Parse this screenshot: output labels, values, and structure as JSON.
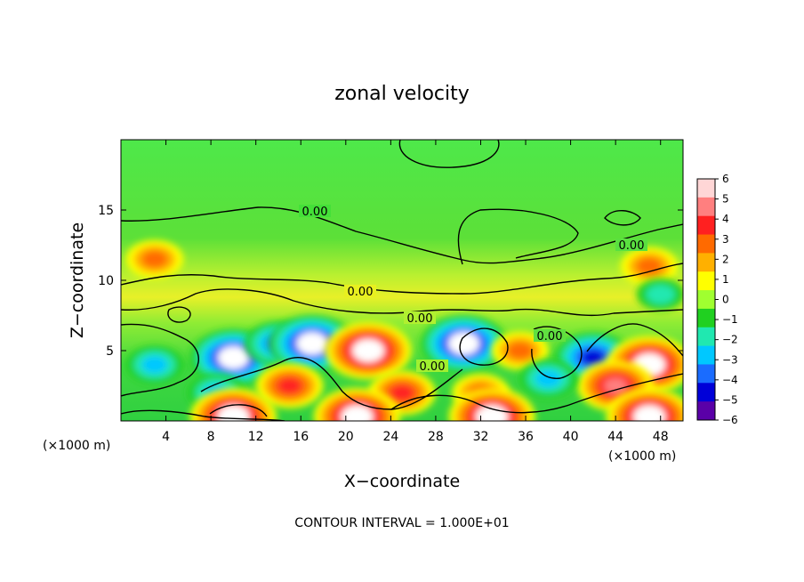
{
  "chart_data": {
    "type": "heatmap",
    "title": "zonal velocity",
    "xlabel": "X−coordinate",
    "ylabel": "Z−coordinate",
    "x_unit": "(×1000 m)",
    "xlim": [
      0,
      50
    ],
    "ylim": [
      0,
      20
    ],
    "x_ticks": [
      4,
      8,
      12,
      16,
      20,
      24,
      28,
      32,
      36,
      40,
      44,
      48
    ],
    "y_ticks": [
      5,
      10,
      15
    ],
    "colorbar": {
      "min": -6,
      "max": 6,
      "ticks": [
        6,
        5,
        4,
        3,
        2,
        1,
        0,
        -1,
        -2,
        -3,
        -4,
        -5,
        -6
      ],
      "tick_labels": [
        "6",
        "5",
        "4",
        "3",
        "2",
        "1",
        "0",
        "−1",
        "−2",
        "−3",
        "−4",
        "−5",
        "−6"
      ],
      "colors": [
        "#ffd6d6",
        "#ff7f7f",
        "#ff2020",
        "#ff6a00",
        "#ffb000",
        "#ffff00",
        "#a0ff30",
        "#20d020",
        "#20e8b0",
        "#00c8ff",
        "#1a6cff",
        "#0000d8",
        "#5a00a8"
      ]
    },
    "contour_labels": [
      "0.00",
      "0.00",
      "0.00",
      "0.00",
      "0.00",
      "0.00"
    ],
    "contour_interval_text": "CONTOUR INTERVAL = 1.000E+01",
    "field_features": [
      {
        "x": 10,
        "z": 4.5,
        "value": -6
      },
      {
        "x": 14,
        "z": 5.5,
        "value": -4
      },
      {
        "x": 17,
        "z": 5.5,
        "value": -6
      },
      {
        "x": 22,
        "z": 5,
        "value": 6
      },
      {
        "x": 30.5,
        "z": 5.5,
        "value": -6
      },
      {
        "x": 35.5,
        "z": 5,
        "value": 3
      },
      {
        "x": 42,
        "z": 4.5,
        "value": -5
      },
      {
        "x": 47,
        "z": 4,
        "value": 6
      },
      {
        "x": 44,
        "z": 2.5,
        "value": 5
      },
      {
        "x": 3,
        "z": 11.5,
        "value": 3
      },
      {
        "x": 47,
        "z": 11,
        "value": 3
      },
      {
        "x": 3,
        "z": 4,
        "value": -3
      },
      {
        "x": 8.5,
        "z": 2,
        "value": -3
      },
      {
        "x": 15,
        "z": 2.5,
        "value": 4
      },
      {
        "x": 25,
        "z": 2,
        "value": 4
      },
      {
        "x": 32,
        "z": 2,
        "value": 3
      },
      {
        "x": 38,
        "z": 3,
        "value": -3
      },
      {
        "x": 48,
        "z": 9,
        "value": -2
      },
      {
        "x": 10,
        "z": 0.3,
        "value": 6
      },
      {
        "x": 21,
        "z": 0.3,
        "value": 6
      },
      {
        "x": 33,
        "z": 0.3,
        "value": 6
      },
      {
        "x": 47,
        "z": 0.3,
        "value": 6
      }
    ]
  }
}
